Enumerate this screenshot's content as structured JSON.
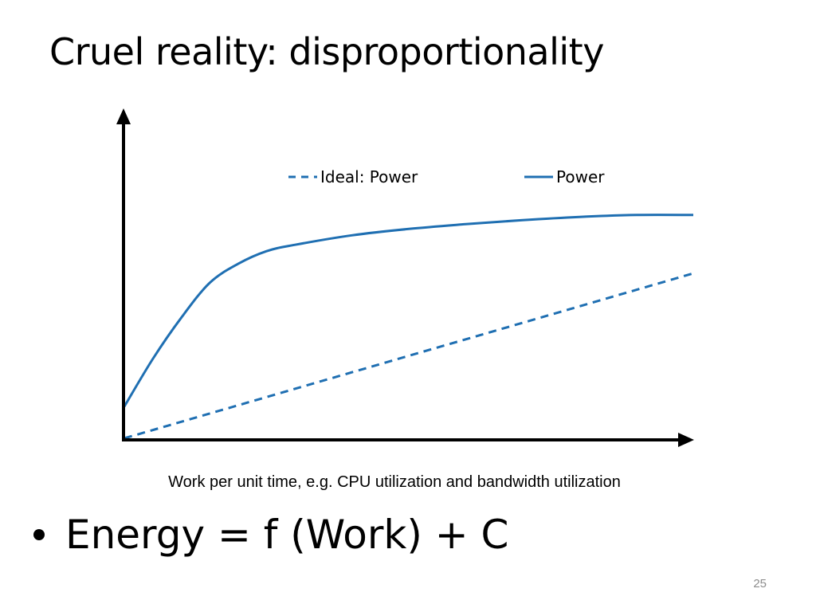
{
  "slide": {
    "title": "Cruel reality: disproportionality",
    "bullet": "Energy = f (Work) + C",
    "page_number": "25"
  },
  "chart_data": {
    "type": "line",
    "title": "",
    "xlabel": "Work per unit time, e.g. CPU utilization and bandwidth utilization",
    "ylabel": "",
    "xlim": [
      0,
      100
    ],
    "ylim": [
      0,
      100
    ],
    "grid": false,
    "legend_position": "top",
    "axis_ticks": false,
    "series": [
      {
        "name": "Ideal: Power",
        "style": "dashed",
        "color": "#1f6fb2",
        "x": [
          0,
          100
        ],
        "y": [
          0,
          52
        ]
      },
      {
        "name": "Power",
        "style": "solid",
        "color": "#1f6fb2",
        "x": [
          0,
          5,
          10,
          15,
          20,
          25,
          30,
          40,
          50,
          60,
          70,
          80,
          90,
          100
        ],
        "y": [
          10,
          25,
          38,
          49,
          55,
          59,
          61,
          64,
          66,
          67.5,
          68.8,
          69.8,
          70.4,
          70.4
        ]
      }
    ]
  },
  "colors": {
    "accent": "#1f6fb2",
    "axis": "#000000",
    "page_number": "#8c8c8c"
  }
}
